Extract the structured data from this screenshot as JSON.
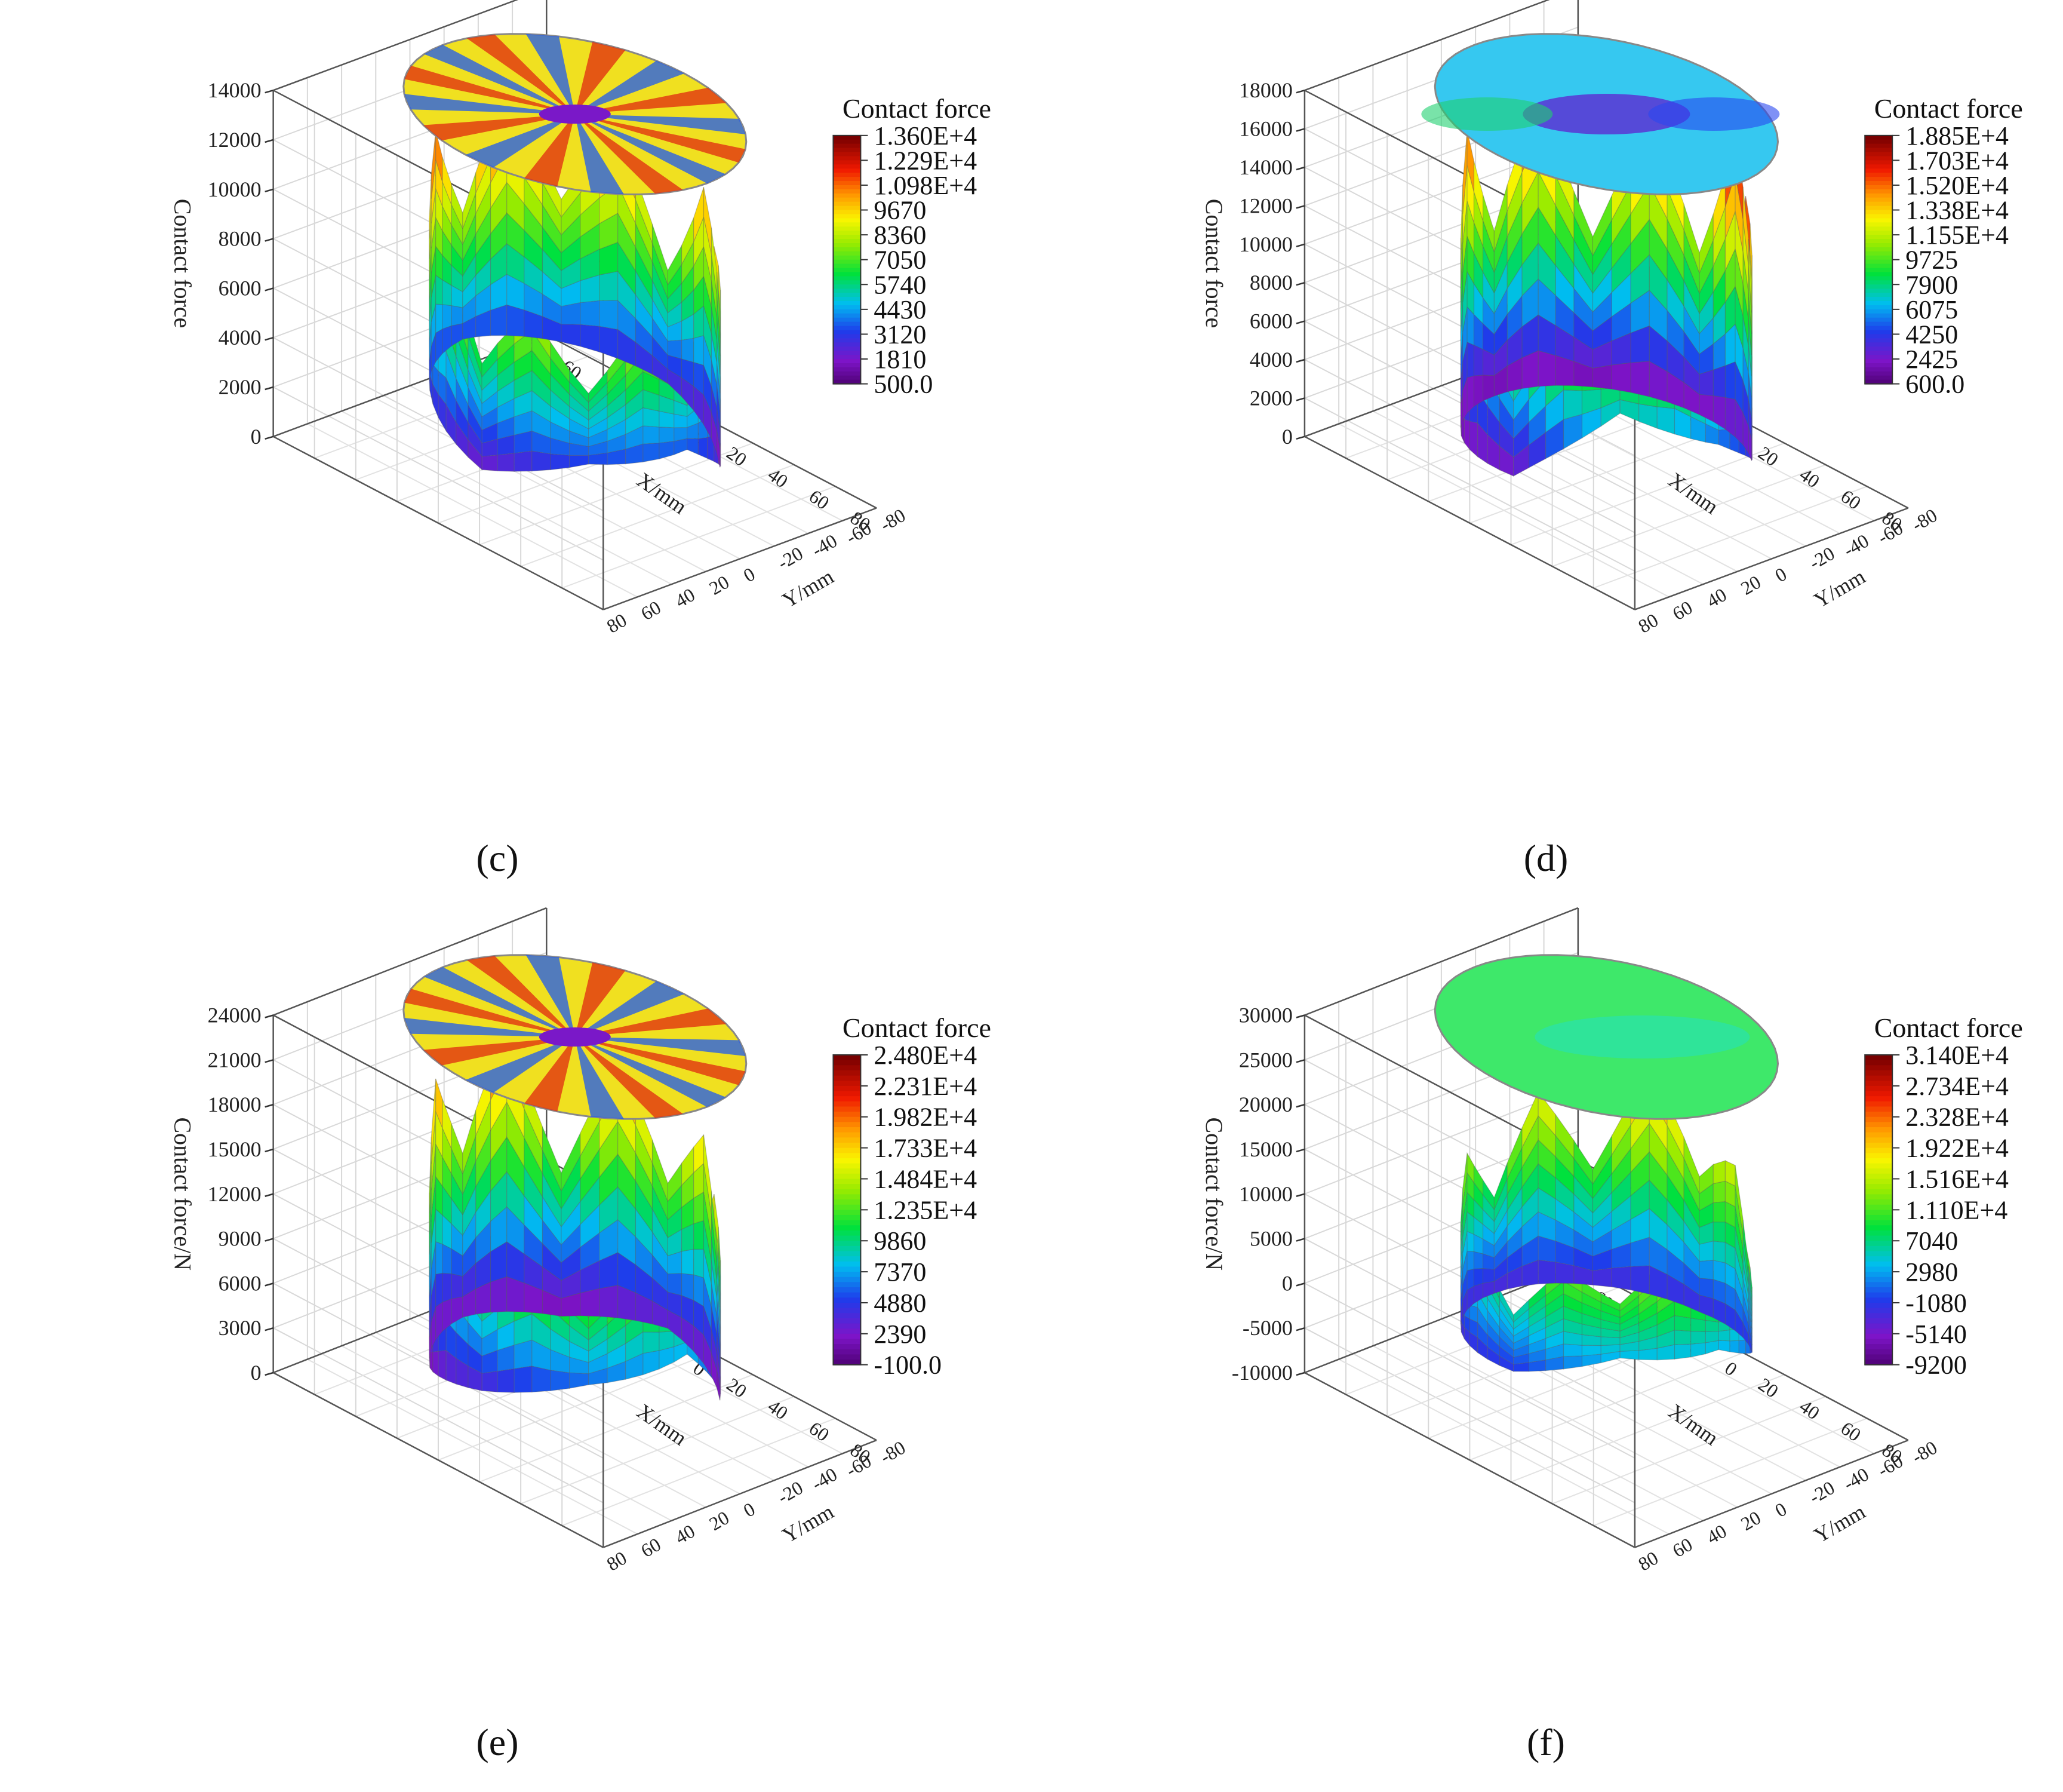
{
  "chart_data": [
    {
      "id": "c",
      "type": "surface3d",
      "panel_label": "(c)",
      "zlabel": "Contact force",
      "xlabel": "X/mm",
      "ylabel": "Y/mm",
      "xticks": [
        "-80",
        "-60",
        "-40",
        "-20",
        "0",
        "20",
        "40",
        "60",
        "80"
      ],
      "yticks": [
        "-80",
        "-60",
        "-40",
        "-20",
        "0",
        "20",
        "40",
        "60",
        "80"
      ],
      "zticks": [
        "0",
        "2000",
        "4000",
        "6000",
        "8000",
        "10000",
        "12000",
        "14000"
      ],
      "zlim": [
        0,
        14000
      ],
      "legend_title": "Contact force",
      "legend_levels": [
        "1.360E+4",
        "1.229E+4",
        "1.098E+4",
        "9670",
        "8360",
        "7050",
        "5740",
        "4430",
        "3120",
        "1810",
        "500.0"
      ],
      "surface_peaks": [
        9800,
        11800,
        10500,
        13100,
        12300,
        12000,
        9300,
        8200
      ],
      "surface_valleys": [
        3300,
        900,
        2200,
        2600,
        3000,
        2600,
        1500,
        3000
      ],
      "disk_style": "star"
    },
    {
      "id": "d",
      "type": "surface3d",
      "panel_label": "(d)",
      "zlabel": "Contact force",
      "xlabel": "X/mm",
      "ylabel": "Y/mm",
      "xticks": [
        "-80",
        "-60",
        "-40",
        "-20",
        "0",
        "20",
        "40",
        "60",
        "80"
      ],
      "yticks": [
        "-80",
        "-60",
        "-40",
        "-20",
        "0",
        "20",
        "40",
        "60",
        "80"
      ],
      "zticks": [
        "0",
        "2000",
        "4000",
        "6000",
        "8000",
        "10000",
        "12000",
        "14000",
        "16000",
        "18000"
      ],
      "zlim": [
        0,
        18000
      ],
      "legend_title": "Contact force",
      "legend_levels": [
        "1.885E+4",
        "1.703E+4",
        "1.520E+4",
        "1.338E+4",
        "1.155E+4",
        "9725",
        "7900",
        "6075",
        "4250",
        "2425",
        "600.0"
      ],
      "surface_peaks": [
        15500,
        17500,
        16500,
        15200,
        16500,
        14800,
        15800,
        16800
      ],
      "surface_valleys": [
        4500,
        1500,
        1200,
        1000,
        900,
        1000,
        1600,
        6500
      ],
      "disk_style": "band"
    },
    {
      "id": "e",
      "type": "surface3d",
      "panel_label": "(e)",
      "zlabel": "Contact force/N",
      "xlabel": "X/mm",
      "ylabel": "Y/mm",
      "xticks": [
        "-80",
        "-60",
        "-40",
        "-20",
        "0",
        "20",
        "40",
        "60",
        "80"
      ],
      "yticks": [
        "-80",
        "-60",
        "-40",
        "-20",
        "0",
        "20",
        "40",
        "60",
        "80"
      ],
      "zticks": [
        "0",
        "3000",
        "6000",
        "9000",
        "12000",
        "15000",
        "18000",
        "21000",
        "24000"
      ],
      "zlim": [
        0,
        24000
      ],
      "legend_title": "Contact force",
      "legend_levels": [
        "2.480E+4",
        "2.231E+4",
        "1.982E+4",
        "1.733E+4",
        "1.484E+4",
        "1.235E+4",
        "9860",
        "7370",
        "4880",
        "2390",
        "-100.0"
      ],
      "surface_peaks": [
        19500,
        14500,
        20500,
        19000,
        22000,
        16500,
        20500,
        17000
      ],
      "surface_valleys": [
        7500,
        1500,
        2800,
        1500,
        2000,
        1500,
        3500,
        6000
      ],
      "disk_style": "star"
    },
    {
      "id": "f",
      "type": "surface3d",
      "panel_label": "(f)",
      "zlabel": "Contact force/N",
      "xlabel": "X/mm",
      "ylabel": "Y/mm",
      "xticks": [
        "-80",
        "-60",
        "-40",
        "-20",
        "0",
        "20",
        "40",
        "60",
        "80"
      ],
      "yticks": [
        "-80",
        "-60",
        "-40",
        "-20",
        "0",
        "20",
        "40",
        "60",
        "80"
      ],
      "zticks": [
        "-10000",
        "-5000",
        "0",
        "5000",
        "10000",
        "15000",
        "20000",
        "25000",
        "30000"
      ],
      "zlim": [
        -10000,
        30000
      ],
      "legend_title": "Contact force",
      "legend_levels": [
        "3.140E+4",
        "2.734E+4",
        "2.328E+4",
        "1.922E+4",
        "1.516E+4",
        "1.110E+4",
        "7040",
        "2980",
        "-1080",
        "-5140",
        "-9200"
      ],
      "surface_peaks": [
        18000,
        7500,
        24000,
        19500,
        15500,
        12000,
        9500,
        14000
      ],
      "surface_valleys": [
        3000,
        -2000,
        -3500,
        -4000,
        -4000,
        -3500,
        -2000,
        3000
      ],
      "disk_style": "flat"
    }
  ]
}
